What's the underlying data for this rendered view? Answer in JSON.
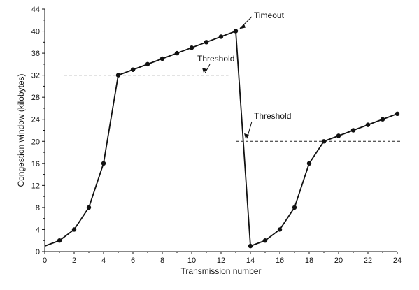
{
  "chart_data": {
    "type": "line",
    "title": "",
    "xlabel": "Transmission number",
    "ylabel": "Congestion window (kilobytes)",
    "xlim": [
      0,
      24
    ],
    "ylim": [
      0,
      44
    ],
    "xticks": [
      0,
      2,
      4,
      6,
      8,
      10,
      12,
      14,
      16,
      18,
      20,
      22,
      24
    ],
    "yticks": [
      0,
      4,
      8,
      12,
      16,
      20,
      24,
      28,
      32,
      36,
      40,
      44
    ],
    "grid": false,
    "legend": "none",
    "series": [
      {
        "x": [
          0,
          1,
          2,
          3,
          4,
          5,
          6,
          7,
          8,
          9,
          10,
          11,
          12,
          13,
          14,
          15,
          16,
          17,
          18,
          19,
          20,
          21,
          22,
          23,
          24
        ],
        "y": [
          1,
          2,
          4,
          8,
          16,
          32,
          33,
          34,
          35,
          36,
          37,
          38,
          39,
          40,
          1,
          2,
          4,
          8,
          16,
          20,
          21,
          22,
          23,
          24,
          25
        ]
      }
    ],
    "thresholds": [
      {
        "label": "Threshold",
        "y": 32,
        "x_range": [
          0,
          12.5
        ]
      },
      {
        "label": "Threshold",
        "y": 20,
        "x_range": [
          13,
          24
        ]
      }
    ],
    "annotations": [
      {
        "text": "Timeout",
        "x": 13,
        "y": 40
      }
    ]
  }
}
